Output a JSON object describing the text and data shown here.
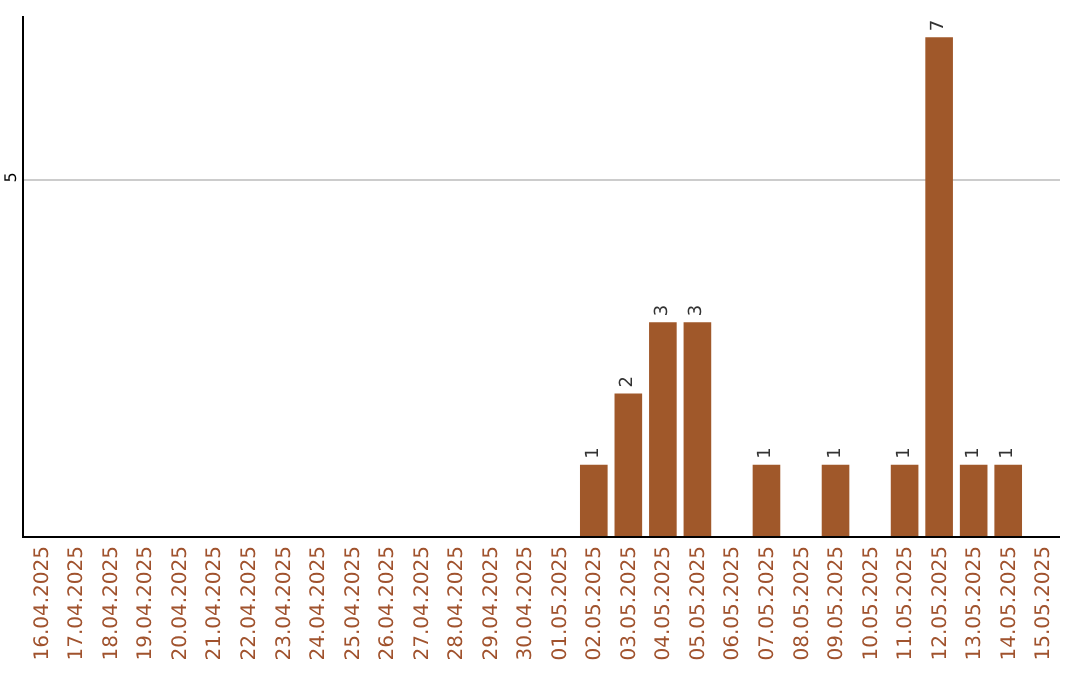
{
  "chart_data": {
    "type": "bar",
    "categories": [
      "16.04.2025",
      "17.04.2025",
      "18.04.2025",
      "19.04.2025",
      "20.04.2025",
      "21.04.2025",
      "22.04.2025",
      "23.04.2025",
      "24.04.2025",
      "25.04.2025",
      "26.04.2025",
      "27.04.2025",
      "28.04.2025",
      "29.04.2025",
      "30.04.2025",
      "01.05.2025",
      "02.05.2025",
      "03.05.2025",
      "04.05.2025",
      "05.05.2025",
      "06.05.2025",
      "07.05.2025",
      "08.05.2025",
      "09.05.2025",
      "10.05.2025",
      "11.05.2025",
      "12.05.2025",
      "13.05.2025",
      "14.05.2025",
      "15.05.2025"
    ],
    "values": [
      null,
      null,
      null,
      null,
      null,
      null,
      null,
      null,
      null,
      null,
      null,
      null,
      null,
      null,
      null,
      null,
      1,
      2,
      3,
      3,
      null,
      1,
      null,
      1,
      null,
      1,
      7,
      1,
      1,
      null
    ],
    "value_labels": [
      null,
      null,
      null,
      null,
      null,
      null,
      null,
      null,
      null,
      null,
      null,
      null,
      null,
      null,
      null,
      null,
      "1",
      "2",
      "3",
      "3",
      null,
      "1",
      null,
      "1",
      null,
      "1",
      "7",
      "1",
      "1",
      null
    ],
    "color": "#a0582a",
    "ylim": [
      0,
      7.3
    ],
    "yticks": [
      5
    ],
    "grid": "y"
  }
}
